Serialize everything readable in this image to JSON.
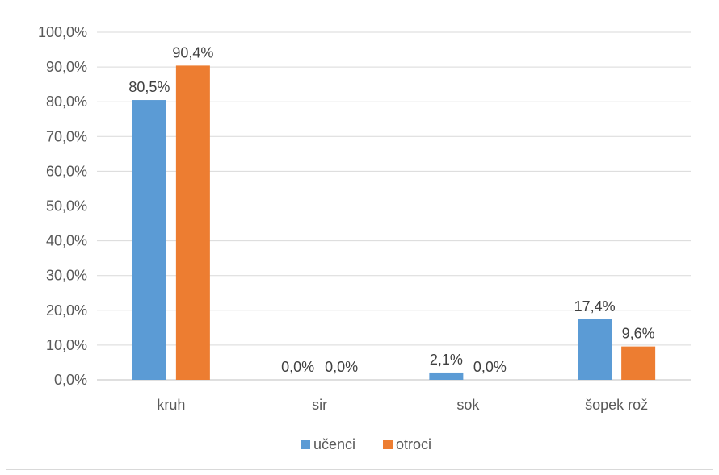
{
  "chart_data": {
    "type": "bar",
    "categories": [
      "kruh",
      "sir",
      "sok",
      "šopek rož"
    ],
    "series": [
      {
        "name": "učenci",
        "values": [
          80.5,
          0.0,
          2.1,
          17.4
        ],
        "labels": [
          "80,5%",
          "0,0%",
          "2,1%",
          "17,4%"
        ],
        "color": "#5b9bd5"
      },
      {
        "name": "otroci",
        "values": [
          90.4,
          0.0,
          0.0,
          9.6
        ],
        "labels": [
          "90,4%",
          "0,0%",
          "0,0%",
          "9,6%"
        ],
        "color": "#ed7d31"
      }
    ],
    "yticks": [
      "0,0%",
      "10,0%",
      "20,0%",
      "30,0%",
      "40,0%",
      "50,0%",
      "60,0%",
      "70,0%",
      "80,0%",
      "90,0%",
      "100,0%"
    ],
    "ylim": [
      0,
      100
    ],
    "grid": true,
    "legend_position": "bottom"
  }
}
